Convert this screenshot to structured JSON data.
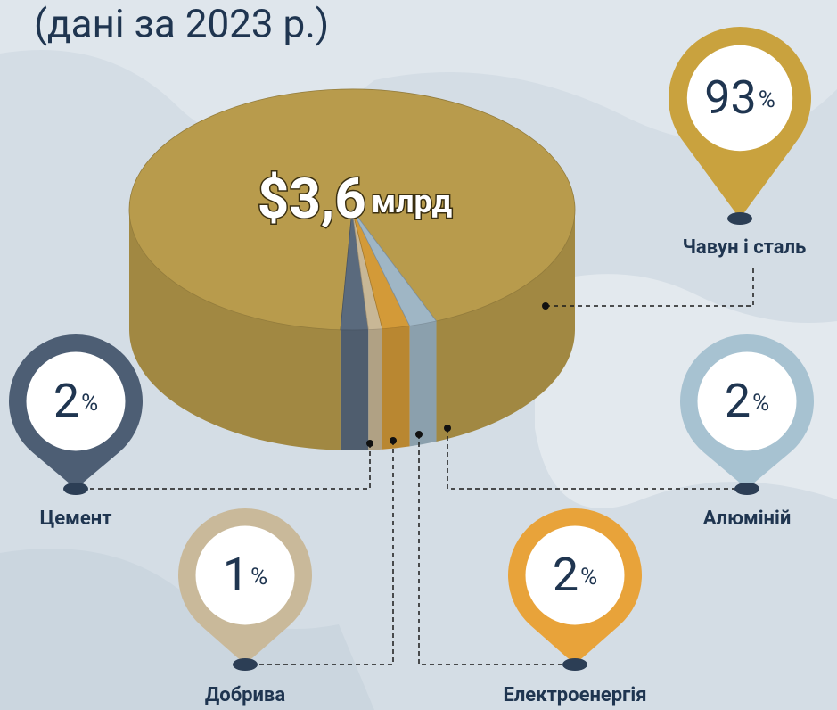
{
  "chart_data": {
    "type": "pie",
    "subtitle": "(дані за 2023 р.)",
    "total_label": "$3,6",
    "total_unit": "млрд",
    "value_unit": "%",
    "categories": [
      "Чавун і сталь",
      "Цемент",
      "Добрива",
      "Електроенергія",
      "Алюміній"
    ],
    "values": [
      93,
      2,
      1,
      2,
      2
    ],
    "colors": [
      "#b89b4c",
      "#5a6a7d",
      "#c8b796",
      "#d39a38",
      "#9fb6c5"
    ],
    "pin_colors": [
      "#c9a23e",
      "#4d5e74",
      "#c9b99a",
      "#e8a33a",
      "#a7c2d1"
    ]
  }
}
